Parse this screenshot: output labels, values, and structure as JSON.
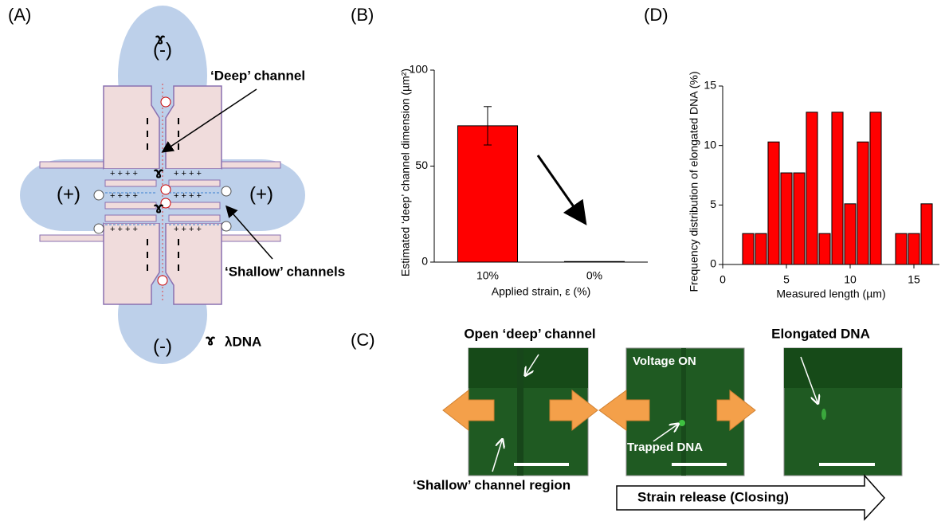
{
  "panel_labels": [
    "(A)",
    "(B)",
    "(C)",
    "(D)"
  ],
  "diagram": {
    "top_electrode": "(-)",
    "bottom_electrode": "(-)",
    "left_electrode": "(+)",
    "right_electrode": "(+)",
    "deep_label": "‘Deep’ channel",
    "shallow_label": "‘Shallow’ channels",
    "legend": "λDNA"
  },
  "micrographs": {
    "open_label": "Open ‘deep’ channel",
    "voltage_label": "Voltage ON",
    "trapped_label": "Trapped DNA",
    "elongated_label": "Elongated DNA",
    "shallow_label": "‘Shallow’ channel region",
    "release_label": "Strain release (Closing)"
  },
  "chart_data": [
    {
      "type": "bar",
      "y_label": "Estimated ‘deep’ channel dimension (µm²)",
      "x_label": "Applied strain, ε  (%)",
      "categories": [
        "10%",
        "0%"
      ],
      "values": [
        71,
        0.3
      ],
      "errors": [
        10,
        null
      ],
      "color": "#ff0000",
      "ylim": [
        0,
        100
      ],
      "yticks": [
        0,
        50,
        100
      ]
    },
    {
      "type": "histogram",
      "y_label": "Frequency distribution of elongated DNA (%)",
      "x_label": "Measured length (µm)",
      "bins": [
        1.5,
        2.5,
        3.5,
        4.5,
        5.5,
        6.5,
        7.5,
        8.5,
        9.5,
        10.5,
        11.5,
        12.5,
        13.5,
        14.5,
        15.5,
        16.5
      ],
      "values": [
        2.6,
        2.6,
        10.3,
        7.7,
        7.7,
        12.8,
        2.6,
        12.8,
        5.1,
        10.3,
        12.8,
        0,
        2.6,
        2.6,
        5.1
      ],
      "color": "#ff0000",
      "xlim": [
        0,
        17
      ],
      "xticks": [
        0,
        5,
        10,
        15
      ],
      "ylim": [
        0,
        15
      ],
      "yticks": [
        0,
        5,
        10,
        15
      ]
    }
  ]
}
